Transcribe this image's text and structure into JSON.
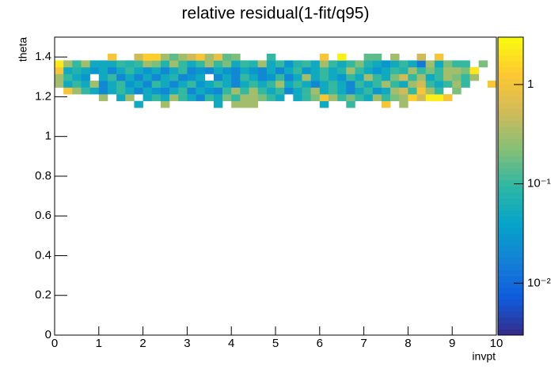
{
  "chart_data": {
    "type": "heatmap",
    "title": "relative residual(1-fit/q95)",
    "x_label": "invpt",
    "y_label": "theta",
    "xlim": [
      0,
      10
    ],
    "ylim": [
      0,
      1.5
    ],
    "xticks": [
      0,
      1,
      2,
      3,
      4,
      5,
      6,
      7,
      8,
      9,
      10
    ],
    "yticks": [
      0,
      0.2,
      0.4,
      0.6,
      0.8,
      1,
      1.2,
      1.4
    ],
    "xbins": [
      0,
      0.2,
      0.4,
      0.6,
      0.8,
      1,
      1.2,
      1.4,
      1.6,
      1.8,
      2,
      2.2,
      2.4,
      2.6,
      2.8,
      3,
      3.2,
      3.4,
      3.6,
      3.8,
      4,
      4.2,
      4.4,
      4.6,
      4.8,
      5,
      5.2,
      5.4,
      5.6,
      5.8,
      6,
      6.2,
      6.4,
      6.6,
      6.8,
      7,
      7.2,
      7.4,
      7.6,
      7.8,
      8,
      8.2,
      8.4,
      8.6,
      8.8,
      9,
      9.2,
      9.4,
      9.6,
      9.8,
      10
    ],
    "ybins": [
      1.145,
      1.179,
      1.213,
      1.247,
      1.281,
      1.315,
      1.349,
      1.383,
      1.417
    ],
    "values": [
      [
        null,
        null,
        null,
        null,
        null,
        null,
        null,
        null,
        null,
        0.05,
        null,
        null,
        0.3,
        null,
        null,
        null,
        null,
        null,
        0.05,
        null,
        0.3,
        0.3,
        0.3,
        null,
        null,
        null,
        null,
        null,
        null,
        null,
        0.05,
        null,
        null,
        0.1,
        null,
        null,
        null,
        1,
        null,
        0.3,
        null,
        null,
        null,
        null,
        null,
        null,
        null,
        null,
        null,
        null
      ],
      [
        null,
        null,
        null,
        null,
        null,
        0.3,
        null,
        0.05,
        0.3,
        null,
        0.05,
        0.1,
        0.05,
        0.3,
        0.1,
        0.05,
        0.02,
        0.1,
        0.05,
        0.2,
        0.1,
        0.3,
        0.3,
        0.2,
        0.1,
        0.05,
        null,
        0.05,
        0.1,
        0.2,
        1,
        0.3,
        0.1,
        0.2,
        0.1,
        0.05,
        0.3,
        0.1,
        0.2,
        0.3,
        1.5,
        0.5,
        2.5,
        2.5,
        1,
        null,
        null,
        null,
        null,
        null
      ],
      [
        null,
        1,
        0.3,
        0.1,
        0.05,
        0.02,
        0.05,
        0.1,
        0.05,
        0.02,
        0.05,
        0.03,
        0.02,
        0.05,
        0.1,
        0.02,
        0.05,
        0.03,
        0.02,
        0.1,
        0.3,
        0.1,
        0.3,
        0.1,
        0.05,
        0.1,
        0.02,
        0.05,
        0.1,
        0.3,
        0.05,
        0.1,
        0.05,
        0.02,
        0.05,
        0.1,
        0.03,
        0.05,
        0.3,
        0.5,
        0.1,
        1,
        0.3,
        0.1,
        null,
        0.2,
        null,
        null,
        null,
        null
      ],
      [
        0.3,
        0.05,
        0.1,
        0.05,
        0.3,
        0.02,
        0.05,
        0.1,
        0.03,
        0.05,
        0.02,
        0.1,
        0.05,
        0.02,
        0.05,
        0.1,
        0.03,
        0.05,
        0.1,
        0.05,
        0.02,
        0.05,
        0.1,
        0.05,
        0.1,
        0.3,
        0.05,
        0.1,
        0.05,
        0.02,
        0.05,
        0.1,
        0.05,
        0.02,
        0.1,
        0.05,
        0.1,
        0.3,
        0.1,
        0.05,
        0.3,
        0.5,
        0.1,
        0.05,
        0.1,
        0.3,
        0.1,
        null,
        null,
        1
      ],
      [
        0.3,
        0.1,
        0.05,
        0.03,
        null,
        0.05,
        0.1,
        0.02,
        0.05,
        0.02,
        0.05,
        0.02,
        0.05,
        0.08,
        0.02,
        0.03,
        0.05,
        null,
        0.02,
        0.05,
        0.02,
        0.1,
        0.05,
        0.02,
        0.03,
        0.1,
        0.02,
        0.05,
        0.3,
        0.05,
        0.1,
        0.05,
        0.03,
        0.1,
        0.05,
        0.3,
        0.1,
        0.05,
        0.2,
        0.5,
        0.1,
        0.3,
        0.05,
        0.1,
        0.3,
        0.2,
        0.1,
        0.3,
        null,
        null
      ],
      [
        1,
        0.05,
        0.08,
        0.05,
        0.03,
        0.05,
        0.02,
        0.05,
        0.1,
        0.05,
        0.03,
        0.05,
        0.02,
        0.05,
        0.1,
        0.02,
        0.03,
        0.02,
        0.05,
        0.03,
        0.02,
        0.05,
        0.03,
        0.02,
        0.05,
        0.02,
        0.05,
        0.1,
        0.03,
        0.05,
        0.1,
        0.05,
        0.08,
        0.3,
        0.1,
        0.05,
        0.03,
        0.05,
        0.1,
        0.08,
        0.3,
        0.1,
        0.2,
        0.1,
        0.3,
        0.3,
        0.2,
        2,
        null,
        null
      ],
      [
        2,
        0.3,
        0.1,
        0.3,
        0.05,
        0.05,
        0.05,
        0.1,
        0.08,
        0.1,
        0.3,
        0.2,
        0.08,
        0.3,
        0.1,
        0.05,
        0.1,
        0.3,
        0.1,
        0.2,
        0.05,
        0.1,
        0.08,
        0.3,
        0.05,
        0.1,
        0.03,
        0.08,
        0.1,
        0.05,
        0.3,
        0.1,
        0.05,
        0.1,
        0.2,
        0.08,
        0.05,
        0.03,
        0.05,
        0.1,
        0.05,
        0.015,
        0.3,
        0.05,
        0.2,
        0.1,
        0.1,
        null,
        0.2,
        null
      ],
      [
        null,
        null,
        null,
        null,
        null,
        null,
        1,
        null,
        null,
        0.5,
        1.5,
        1.5,
        0.3,
        0.15,
        0.3,
        0.5,
        1,
        0.3,
        0.8,
        0.15,
        0.2,
        null,
        null,
        null,
        0.1,
        null,
        null,
        null,
        null,
        null,
        1,
        null,
        2.5,
        null,
        null,
        0.15,
        0.15,
        null,
        0.3,
        null,
        null,
        0.5,
        null,
        1,
        null,
        null,
        null,
        null,
        null,
        null
      ]
    ],
    "zlim": [
      0.003,
      3
    ],
    "log_z": true,
    "zticks": [
      {
        "value": 0.01,
        "label": "10⁻²"
      },
      {
        "value": 0.1,
        "label": "10⁻¹"
      },
      1
    ],
    "palette": [
      "#352a87",
      "#0f5cdd",
      "#1481d6",
      "#06a4ca",
      "#2eb7a4",
      "#87bf77",
      "#d1bb59",
      "#fec832",
      "#f9fb0e"
    ]
  }
}
